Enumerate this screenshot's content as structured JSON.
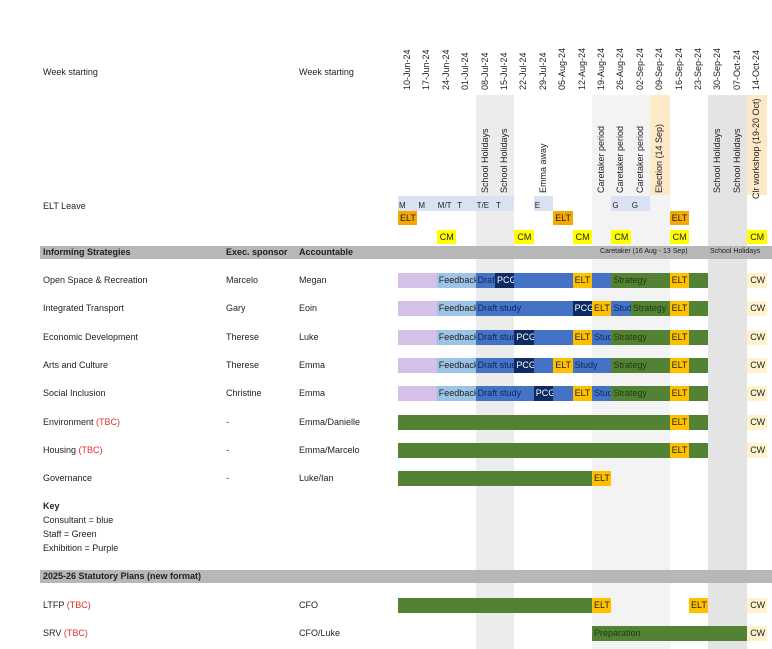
{
  "header": {
    "week_label_1": "Week starting",
    "week_label_2": "Week starting",
    "elt_leave": "ELT Leave"
  },
  "weeks": [
    "10-Jun-24",
    "17-Jun-24",
    "24-Jun-24",
    "01-Jul-24",
    "08-Jul-24",
    "15-Jul-24",
    "22-Jul-24",
    "29-Jul-24",
    "05-Aug-24",
    "12-Aug-24",
    "19-Aug-24",
    "26-Aug-24",
    "02-Sep-24",
    "09-Sep-24",
    "16-Sep-24",
    "23-Sep-24",
    "30-Sep-24",
    "07-Oct-24",
    "14-Oct-24"
  ],
  "events": [
    {
      "col": 4,
      "label": "School Holidays"
    },
    {
      "col": 5,
      "label": "School Holidays"
    },
    {
      "col": 7,
      "label": "Emma away"
    },
    {
      "col": 10,
      "label": "Caretaker period"
    },
    {
      "col": 11,
      "label": "Caretaker period"
    },
    {
      "col": 12,
      "label": "Caretaker period"
    },
    {
      "col": 13,
      "label": "Election (14 Sep)"
    },
    {
      "col": 16,
      "label": "School Holidays"
    },
    {
      "col": 17,
      "label": "School Holidays"
    },
    {
      "col": 18,
      "label": "Clr workshop (19-20 Oct)"
    }
  ],
  "leave": [
    {
      "col": 0,
      "label": "M"
    },
    {
      "col": 1,
      "label": "M"
    },
    {
      "col": 2,
      "label": "M/T"
    },
    {
      "col": 3,
      "label": "T"
    },
    {
      "col": 4,
      "label": "T/E"
    },
    {
      "col": 5,
      "label": "T"
    },
    {
      "col": 7,
      "label": "E"
    },
    {
      "col": 11,
      "label": "G"
    },
    {
      "col": 12,
      "label": "G"
    }
  ],
  "elt_marks": [
    {
      "col": 0,
      "label": "ELT"
    },
    {
      "col": 8,
      "label": "ELT"
    },
    {
      "col": 14,
      "label": "ELT"
    }
  ],
  "cm_marks": [
    {
      "col": 2,
      "label": "CM"
    },
    {
      "col": 6,
      "label": "CM"
    },
    {
      "col": 9,
      "label": "CM"
    },
    {
      "col": 11,
      "label": "CM"
    },
    {
      "col": 14,
      "label": "CM"
    },
    {
      "col": 18,
      "label": "CM"
    }
  ],
  "section1": {
    "title": "Informing Strategies",
    "exec": "Exec. sponsor",
    "accountable": "Accountable",
    "note_caretaker": "Caretaker (16 Aug - 13 Sep)",
    "note_holidays": "School Holidays"
  },
  "rows": [
    {
      "name": "Open Space & Recreation",
      "tbc": "",
      "exec": "Marcelo",
      "acc": "Megan",
      "segs": [
        [
          0,
          2,
          "purple",
          ""
        ],
        [
          2,
          2,
          "lightblue",
          "Feedback"
        ],
        [
          4,
          1,
          "blue",
          "Draft"
        ],
        [
          5,
          1,
          "navy",
          "PCG"
        ],
        [
          6,
          3,
          "blue",
          ""
        ],
        [
          9,
          1,
          "elt",
          "ELT"
        ],
        [
          10,
          1,
          "blue",
          ""
        ],
        [
          11,
          3,
          "green",
          "Strategy"
        ],
        [
          14,
          1,
          "elt",
          "ELT"
        ],
        [
          15,
          1,
          "green",
          ""
        ],
        [
          18,
          1,
          "cw",
          "CW"
        ]
      ]
    },
    {
      "name": "Integrated Transport",
      "tbc": "",
      "exec": "Gary",
      "acc": "Eoin",
      "segs": [
        [
          0,
          2,
          "purple",
          ""
        ],
        [
          2,
          2,
          "lightblue",
          "Feedback"
        ],
        [
          4,
          5,
          "blue",
          "Draft study"
        ],
        [
          9,
          1,
          "navy",
          "PCG"
        ],
        [
          10,
          1,
          "elt",
          "ELT"
        ],
        [
          11,
          1,
          "blue",
          "Study"
        ],
        [
          12,
          2,
          "green",
          "Strategy"
        ],
        [
          14,
          1,
          "elt",
          "ELT"
        ],
        [
          15,
          1,
          "green",
          ""
        ],
        [
          18,
          1,
          "cw",
          "CW"
        ]
      ]
    },
    {
      "name": "Economic Development",
      "tbc": "",
      "exec": "Therese",
      "acc": "Luke",
      "segs": [
        [
          0,
          2,
          "purple",
          ""
        ],
        [
          2,
          2,
          "lightblue",
          "Feedback"
        ],
        [
          4,
          2,
          "blue",
          "Draft study"
        ],
        [
          6,
          1,
          "navy",
          "PCG"
        ],
        [
          7,
          2,
          "blue",
          ""
        ],
        [
          9,
          1,
          "elt",
          "ELT"
        ],
        [
          10,
          1,
          "blue",
          "Study"
        ],
        [
          11,
          3,
          "green",
          "Strategy"
        ],
        [
          14,
          1,
          "elt",
          "ELT"
        ],
        [
          15,
          1,
          "green",
          ""
        ],
        [
          18,
          1,
          "cw",
          "CW"
        ]
      ]
    },
    {
      "name": "Arts and Culture",
      "tbc": "",
      "exec": "Therese",
      "acc": "Emma",
      "segs": [
        [
          0,
          2,
          "purple",
          ""
        ],
        [
          2,
          2,
          "lightblue",
          "Feedback"
        ],
        [
          4,
          2,
          "blue",
          "Draft study"
        ],
        [
          6,
          1,
          "navy",
          "PCG"
        ],
        [
          7,
          1,
          "blue",
          ""
        ],
        [
          8,
          1,
          "elt",
          "ELT"
        ],
        [
          9,
          2,
          "blue",
          "Study"
        ],
        [
          11,
          3,
          "green",
          "Strategy"
        ],
        [
          14,
          1,
          "elt",
          "ELT"
        ],
        [
          15,
          1,
          "green",
          ""
        ],
        [
          18,
          1,
          "cw",
          "CW"
        ]
      ]
    },
    {
      "name": "Social Inclusion",
      "tbc": "",
      "exec": "Christine",
      "acc": "Emma",
      "segs": [
        [
          0,
          2,
          "purple",
          ""
        ],
        [
          2,
          2,
          "lightblue",
          "Feedback"
        ],
        [
          4,
          3,
          "blue",
          "Draft study"
        ],
        [
          7,
          1,
          "navy",
          "PCG"
        ],
        [
          8,
          1,
          "blue",
          ""
        ],
        [
          9,
          1,
          "elt",
          "ELT"
        ],
        [
          10,
          1,
          "blue",
          "Study"
        ],
        [
          11,
          3,
          "green",
          "Strategy"
        ],
        [
          14,
          1,
          "elt",
          "ELT"
        ],
        [
          15,
          1,
          "green",
          ""
        ],
        [
          18,
          1,
          "cw",
          "CW"
        ]
      ]
    },
    {
      "name": "Environment",
      "tbc": "(TBC)",
      "exec": "-",
      "acc": "Emma/Danielle",
      "segs": [
        [
          0,
          14,
          "green",
          ""
        ],
        [
          14,
          1,
          "elt",
          "ELT"
        ],
        [
          15,
          1,
          "green",
          ""
        ],
        [
          18,
          1,
          "cw",
          "CW"
        ]
      ]
    },
    {
      "name": "Housing",
      "tbc": "(TBC)",
      "exec": "-",
      "acc": "Emma/Marcelo",
      "segs": [
        [
          0,
          14,
          "green",
          ""
        ],
        [
          14,
          1,
          "elt",
          "ELT"
        ],
        [
          15,
          1,
          "green",
          ""
        ],
        [
          18,
          1,
          "cw",
          "CW"
        ]
      ]
    },
    {
      "name": "Governance",
      "tbc": "",
      "exec": "-",
      "acc": "Luke/Ian",
      "segs": [
        [
          0,
          10,
          "green",
          ""
        ],
        [
          10,
          1,
          "elt",
          "ELT"
        ]
      ]
    }
  ],
  "key": {
    "title": "Key",
    "lines": [
      "Consultant = blue",
      "Staff = Green",
      "Exhibition = Purple"
    ]
  },
  "section2": {
    "title": "2025-26 Statutory Plans  (new format)"
  },
  "rows2": [
    {
      "name": "LTFP",
      "tbc": "(TBC)",
      "acc": "CFO",
      "segs": [
        [
          0,
          10,
          "green",
          ""
        ],
        [
          10,
          1,
          "elt",
          "ELT"
        ],
        [
          15,
          1,
          "elt",
          "ELT"
        ],
        [
          18,
          1,
          "cw",
          "CW"
        ]
      ]
    },
    {
      "name": "SRV",
      "tbc": "(TBC)",
      "acc": "CFO/Luke",
      "segs": [
        [
          10,
          8,
          "green",
          "Preparation"
        ],
        [
          18,
          1,
          "cw",
          "CW"
        ]
      ]
    }
  ],
  "colors": {
    "purple": "#d5c0e8",
    "lightblue": "#9dc3e6",
    "blue": "#4472c4",
    "navy": "#0d2a63",
    "elt": "#ffc000",
    "green": "#548235",
    "cw": "#fff2cc",
    "cm": "#ffff00",
    "leave": "#d9e1f2",
    "section": "#b7b7b7",
    "tbc": "#e0302a"
  }
}
